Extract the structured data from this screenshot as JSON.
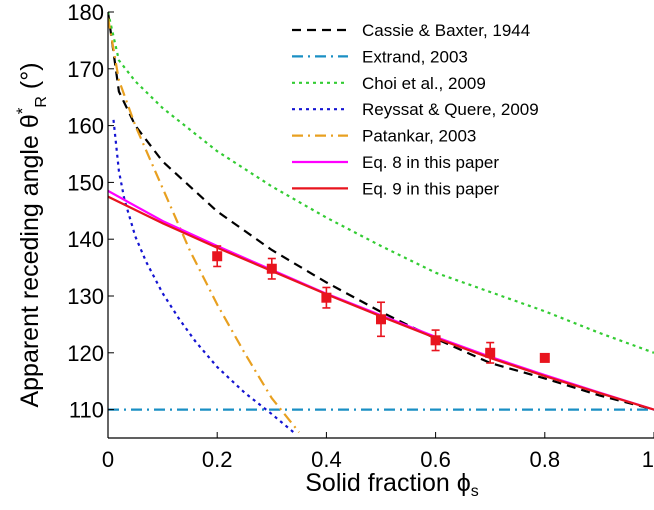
{
  "chart_data": {
    "type": "line",
    "xlabel": "Solid fraction",
    "xlabel_symbol": "ϕ",
    "xlabel_sub": "s",
    "ylabel": "Apparent receding angle θ",
    "ylabel_sup": "*",
    "ylabel_sub": "R",
    "ylabel_unit": "(°)",
    "xlim": [
      0,
      1
    ],
    "ylim": [
      105,
      180
    ],
    "xticks": [
      0,
      0.2,
      0.4,
      0.6,
      0.8,
      1
    ],
    "xtick_labels": [
      "0",
      "0.2",
      "0.4",
      "0.6",
      "0.8",
      "1"
    ],
    "yticks": [
      110,
      120,
      130,
      140,
      150,
      160,
      170,
      180
    ],
    "ytick_labels": [
      "110",
      "120",
      "130",
      "140",
      "150",
      "160",
      "170",
      "180"
    ],
    "grid": false,
    "legend_position": "top-right",
    "series": [
      {
        "name": "Cassie & Baxter, 1944",
        "color": "#000000",
        "dash": "dashed",
        "x": [
          0,
          0.02,
          0.05,
          0.1,
          0.2,
          0.3,
          0.4,
          0.5,
          0.6,
          0.7,
          0.8,
          0.9,
          1.0
        ],
        "y": [
          180,
          166,
          160,
          153.7,
          144.9,
          138.1,
          132.4,
          127.2,
          122.5,
          118.2,
          115.5,
          112.5,
          110
        ]
      },
      {
        "name": "Extrand, 2003",
        "color": "#1a8fc4",
        "dash": "dashdot",
        "x": [
          0,
          1
        ],
        "y": [
          110,
          110
        ]
      },
      {
        "name": "Choi et al., 2009",
        "color": "#33cc33",
        "dash": "dotted",
        "x": [
          0,
          0.02,
          0.05,
          0.1,
          0.2,
          0.3,
          0.4,
          0.5,
          0.6,
          0.7,
          0.8,
          0.9,
          1.0
        ],
        "y": [
          180,
          171.5,
          167.8,
          163.1,
          155.5,
          149.3,
          143.8,
          138.8,
          134.1,
          130.7,
          127.3,
          123.5,
          120
        ]
      },
      {
        "name": "Reyssat & Quere, 2009",
        "color": "#1414d2",
        "dash": "dotted",
        "x": [
          0.01,
          0.02,
          0.03,
          0.05,
          0.07,
          0.1,
          0.13,
          0.16,
          0.2,
          0.25,
          0.3,
          0.34
        ],
        "y": [
          161,
          152,
          147,
          140.5,
          136,
          130.5,
          126,
          122,
          117.5,
          113,
          109.2,
          106
        ]
      },
      {
        "name": "Patankar, 2003",
        "color": "#e8a020",
        "dash": "dashdot",
        "x": [
          0,
          0.02,
          0.05,
          0.1,
          0.15,
          0.2,
          0.25,
          0.3,
          0.35
        ],
        "y": [
          179,
          168,
          160,
          149,
          138,
          128.5,
          120,
          112,
          106
        ]
      },
      {
        "name": "Eq. 8 in this paper",
        "color": "#ff00ff",
        "dash": "solid",
        "x": [
          0,
          0.1,
          0.2,
          0.3,
          0.4,
          0.5,
          0.6,
          0.7,
          0.8,
          0.9,
          1.0
        ],
        "y": [
          148.5,
          143.2,
          138.8,
          134.6,
          130.4,
          126.6,
          122.8,
          119.3,
          116.1,
          113.0,
          110.0
        ]
      },
      {
        "name": "Eq. 9 in this paper",
        "color": "#e8141e",
        "dash": "solid",
        "x": [
          0,
          0.1,
          0.2,
          0.3,
          0.4,
          0.5,
          0.6,
          0.7,
          0.8,
          0.9,
          1.0
        ],
        "y": [
          147.5,
          142.8,
          138.5,
          134.4,
          130.3,
          126.4,
          122.6,
          119.1,
          115.9,
          112.9,
          110.0
        ]
      }
    ],
    "experimental": {
      "color": "#e8141e",
      "points": [
        {
          "x": 0.2,
          "y": 137.0,
          "err": 1.8
        },
        {
          "x": 0.3,
          "y": 134.8,
          "err": 1.8
        },
        {
          "x": 0.4,
          "y": 129.7,
          "err": 1.8
        },
        {
          "x": 0.5,
          "y": 125.9,
          "err": 3.0
        },
        {
          "x": 0.6,
          "y": 122.2,
          "err": 1.8
        },
        {
          "x": 0.7,
          "y": 120.0,
          "err": 1.8
        },
        {
          "x": 0.8,
          "y": 119.1,
          "err": 0.6
        }
      ]
    }
  }
}
